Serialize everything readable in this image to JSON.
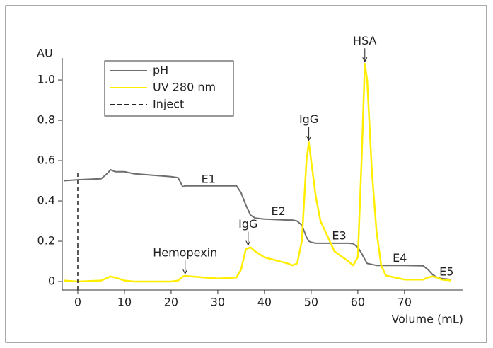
{
  "chart_data": {
    "type": "line",
    "y_label": "AU",
    "x_label": "Volume (mL)",
    "x": [
      -3,
      0,
      5,
      6.5,
      7,
      8,
      10,
      12,
      20,
      21.5,
      22.5,
      23,
      30,
      34,
      35,
      36,
      37,
      38,
      40,
      45,
      46,
      47,
      48,
      49,
      49.5,
      50,
      51,
      52,
      55,
      58,
      59,
      60,
      60.8,
      61.5,
      62,
      63,
      64,
      65,
      66,
      70,
      74,
      75,
      76,
      77,
      78,
      80
    ],
    "series": [
      {
        "name": "pH",
        "color": "#6e6e6e",
        "values": [
          0.5,
          0.505,
          0.51,
          0.54,
          0.555,
          0.545,
          0.545,
          0.535,
          0.52,
          0.515,
          0.47,
          0.475,
          0.475,
          0.475,
          0.44,
          0.38,
          0.33,
          0.315,
          0.31,
          0.305,
          0.305,
          0.3,
          0.28,
          0.22,
          0.2,
          0.195,
          0.19,
          0.19,
          0.19,
          0.19,
          0.188,
          0.17,
          0.14,
          0.11,
          0.09,
          0.085,
          0.08,
          0.08,
          0.08,
          0.08,
          0.078,
          0.06,
          0.035,
          0.02,
          0.015,
          0.01
        ]
      },
      {
        "name": "UV 280 nm",
        "color": "#ffee00",
        "values": [
          0.005,
          0.0,
          0.005,
          0.02,
          0.025,
          0.02,
          0.005,
          0.0,
          0.0,
          0.005,
          0.025,
          0.028,
          0.015,
          0.02,
          0.06,
          0.16,
          0.17,
          0.15,
          0.12,
          0.09,
          0.08,
          0.09,
          0.2,
          0.6,
          0.69,
          0.6,
          0.42,
          0.3,
          0.15,
          0.1,
          0.08,
          0.12,
          0.6,
          1.08,
          1.0,
          0.55,
          0.25,
          0.08,
          0.03,
          0.01,
          0.01,
          0.02,
          0.025,
          0.02,
          0.01,
          0.005
        ]
      }
    ],
    "vlines": [
      {
        "name": "Inject",
        "color": "#222222",
        "x": 0,
        "top": 0.54
      }
    ],
    "annotations": [
      {
        "text": "Hemopexin",
        "x": 23,
        "y": 0.028,
        "arrow": true
      },
      {
        "text": "IgG",
        "x": 36.5,
        "y": 0.17,
        "arrow": true
      },
      {
        "text": "IgG",
        "x": 49.5,
        "y": 0.69,
        "arrow": true
      },
      {
        "text": "HSA",
        "x": 61.5,
        "y": 1.08,
        "arrow": true
      },
      {
        "text": "E1",
        "x": 28,
        "y": 0.505,
        "arrow": false
      },
      {
        "text": "E2",
        "x": 43,
        "y": 0.345,
        "arrow": false
      },
      {
        "text": "E3",
        "x": 56,
        "y": 0.225,
        "arrow": false
      },
      {
        "text": "E4",
        "x": 69,
        "y": 0.115,
        "arrow": false
      },
      {
        "text": "E5",
        "x": 79,
        "y": 0.045,
        "arrow": false
      }
    ],
    "xlim": [
      -3.33,
      82.6
    ],
    "ylim": [
      -0.042,
      1.109
    ],
    "xticks": [
      0,
      10,
      20,
      30,
      40,
      50,
      60,
      70
    ],
    "yticks": [
      0,
      0.2,
      0.4,
      0.6,
      0.8,
      {
        "value": 1,
        "label": "1.0"
      }
    ],
    "grid": false
  }
}
